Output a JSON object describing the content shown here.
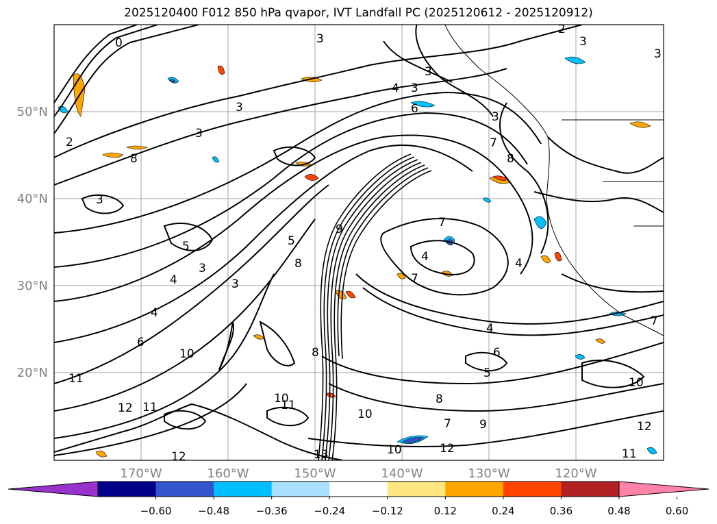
{
  "title": "2025120400 F012 850 hPa qvapor, IVT Landfall PC (2025120612 - 2025120912)",
  "colors": {
    "text_gray": "#808080",
    "grid": "#a0a0a0",
    "coast": "#000000",
    "contour": "#000000"
  },
  "map": {
    "lon_labels": [
      "170°W",
      "160°W",
      "150°W",
      "140°W",
      "130°W",
      "120°W"
    ],
    "lat_labels": [
      "50°N",
      "40°N",
      "30°N",
      "20°N"
    ]
  },
  "contour_labels": [
    "3",
    "3",
    "2",
    "3",
    "0",
    "2",
    "3",
    "3",
    "4",
    "3",
    "6",
    "3",
    "7",
    "3",
    "8",
    "8",
    "3",
    "5",
    "3",
    "5",
    "4",
    "4",
    "3",
    "6",
    "7",
    "8",
    "9",
    "4",
    "4",
    "7",
    "4",
    "8",
    "10",
    "11",
    "12",
    "11",
    "12",
    "10",
    "11",
    "10",
    "13",
    "12",
    "10",
    "11",
    "10",
    "12",
    "9",
    "7",
    "6",
    "5",
    "8",
    "7"
  ],
  "colorbar": {
    "colors": [
      "#9932cc",
      "#00008b",
      "#3355cc",
      "#00bfff",
      "#aadfff",
      "#ffffff",
      "#ffe680",
      "#ffa500",
      "#ff4500",
      "#b22222",
      "#ff82a8"
    ],
    "tick_labels": [
      "−0.60",
      "−0.48",
      "−0.36",
      "−0.24",
      "−0.12",
      "0.12",
      "0.24",
      "0.36",
      "0.48",
      "0.60"
    ]
  }
}
